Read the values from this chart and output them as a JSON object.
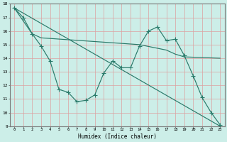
{
  "xlabel": "Humidex (Indice chaleur)",
  "xlim": [
    -0.5,
    23.5
  ],
  "ylim": [
    9,
    18
  ],
  "yticks": [
    9,
    10,
    11,
    12,
    13,
    14,
    15,
    16,
    17,
    18
  ],
  "xticks": [
    0,
    1,
    2,
    3,
    4,
    5,
    6,
    7,
    8,
    9,
    10,
    11,
    12,
    13,
    14,
    15,
    16,
    17,
    18,
    19,
    20,
    21,
    22,
    23
  ],
  "bg_color": "#cceee8",
  "grid_color": "#dda0a0",
  "line_color": "#2a7a6a",
  "line1_x": [
    0,
    1,
    2,
    3,
    4,
    5,
    6,
    7,
    8,
    9,
    10,
    11,
    12,
    13,
    14,
    15,
    16,
    17,
    18,
    19,
    20,
    21,
    22,
    23
  ],
  "line1_y": [
    17.7,
    17.0,
    15.8,
    14.9,
    13.8,
    11.7,
    11.5,
    10.8,
    10.9,
    11.3,
    12.9,
    13.8,
    13.3,
    13.3,
    14.9,
    16.0,
    16.3,
    15.3,
    15.4,
    14.2,
    12.7,
    11.1,
    10.0,
    9.1
  ],
  "line2_x": [
    0,
    23
  ],
  "line2_y": [
    17.7,
    9.0
  ],
  "line3_x": [
    0,
    2,
    3,
    14,
    17,
    18,
    19,
    23
  ],
  "line3_y": [
    17.7,
    15.8,
    15.5,
    15.0,
    14.6,
    14.3,
    14.1,
    14.0
  ]
}
